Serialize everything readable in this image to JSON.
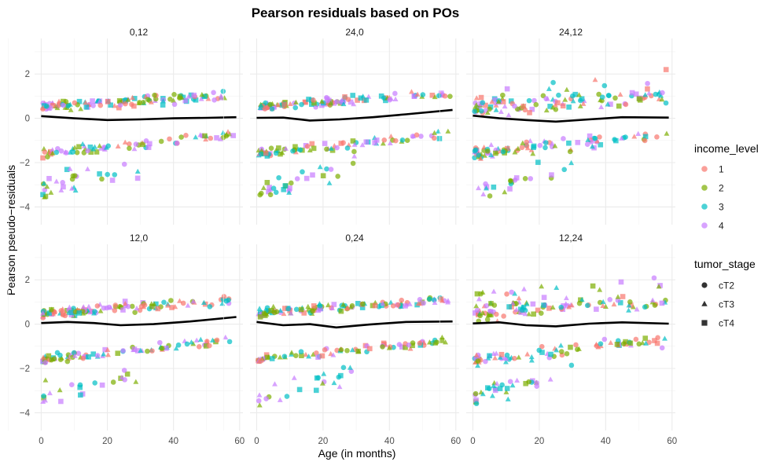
{
  "chart_data": {
    "type": "scatter",
    "title": "Pearson residuals based on POs",
    "xlabel": "Age (in months)",
    "ylabel": "Pearson pseudo−residuals",
    "x_ticks": [
      "0",
      "20",
      "40",
      "60"
    ],
    "y_ticks": [
      "−4",
      "−2",
      "0",
      "2"
    ],
    "xlim": [
      -2,
      61
    ],
    "ylim": [
      -4.8,
      3.6
    ],
    "panels": [
      {
        "label": "0,12",
        "smooth": [
          [
            0,
            0.1
          ],
          [
            10,
            0.0
          ],
          [
            20,
            -0.08
          ],
          [
            30,
            -0.05
          ],
          [
            40,
            0.0
          ],
          [
            50,
            0.02
          ],
          [
            59,
            0.05
          ]
        ]
      },
      {
        "label": "24,0",
        "smooth": [
          [
            0,
            0.02
          ],
          [
            8,
            0.03
          ],
          [
            16,
            -0.1
          ],
          [
            25,
            -0.05
          ],
          [
            35,
            0.05
          ],
          [
            45,
            0.18
          ],
          [
            59,
            0.38
          ]
        ]
      },
      {
        "label": "24,12",
        "smooth": [
          [
            0,
            0.12
          ],
          [
            8,
            0.0
          ],
          [
            16,
            -0.08
          ],
          [
            25,
            -0.15
          ],
          [
            35,
            -0.05
          ],
          [
            45,
            0.05
          ],
          [
            59,
            0.03
          ]
        ]
      },
      {
        "label": "12,0",
        "smooth": [
          [
            0,
            0.05
          ],
          [
            8,
            0.1
          ],
          [
            16,
            0.05
          ],
          [
            24,
            -0.05
          ],
          [
            34,
            0.0
          ],
          [
            45,
            0.12
          ],
          [
            59,
            0.32
          ]
        ]
      },
      {
        "label": "0,24",
        "smooth": [
          [
            0,
            0.1
          ],
          [
            8,
            -0.05
          ],
          [
            16,
            0.0
          ],
          [
            24,
            -0.15
          ],
          [
            34,
            -0.02
          ],
          [
            45,
            0.1
          ],
          [
            59,
            0.12
          ]
        ]
      },
      {
        "label": "12,24",
        "smooth": [
          [
            0,
            0.03
          ],
          [
            8,
            0.08
          ],
          [
            16,
            -0.05
          ],
          [
            25,
            -0.1
          ],
          [
            35,
            0.02
          ],
          [
            45,
            0.08
          ],
          [
            59,
            0.02
          ]
        ]
      }
    ],
    "legend_income": {
      "title": "income_level",
      "items": [
        {
          "label": "1",
          "color": "#F8766D"
        },
        {
          "label": "2",
          "color": "#7CAE00"
        },
        {
          "label": "3",
          "color": "#00BFC4"
        },
        {
          "label": "4",
          "color": "#C77CFF"
        }
      ]
    },
    "legend_stage": {
      "title": "tumor_stage",
      "items": [
        {
          "label": "cT2",
          "shape": "circle"
        },
        {
          "label": "cT3",
          "shape": "triangle"
        },
        {
          "label": "cT4",
          "shape": "square"
        }
      ]
    },
    "legend_placement": "right"
  }
}
